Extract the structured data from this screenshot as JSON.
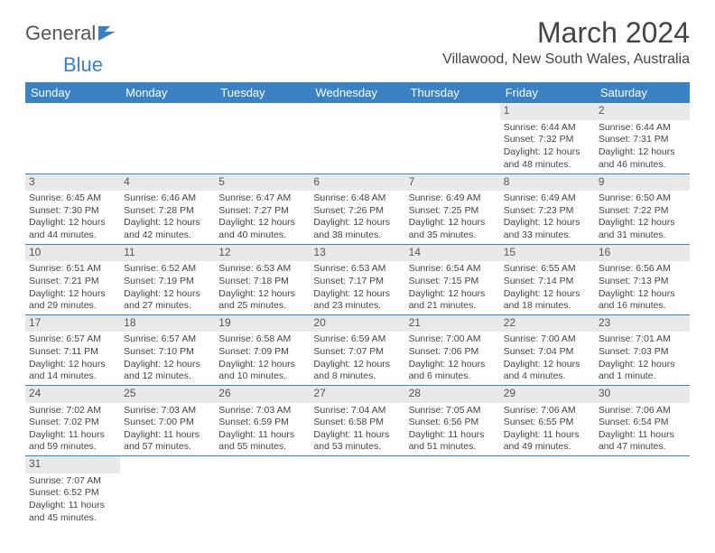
{
  "logo": {
    "text1": "General",
    "text2": "Blue"
  },
  "title": "March 2024",
  "location": "Villawood, New South Wales, Australia",
  "colors": {
    "header_bg": "#3b82c4",
    "header_fg": "#ffffff",
    "daynum_bg": "#e9e9e9",
    "row_border": "#3b82c4",
    "logo_blue": "#3b7fc4"
  },
  "columns": [
    "Sunday",
    "Monday",
    "Tuesday",
    "Wednesday",
    "Thursday",
    "Friday",
    "Saturday"
  ],
  "weeks": [
    [
      null,
      null,
      null,
      null,
      null,
      {
        "n": "1",
        "sr": "Sunrise: 6:44 AM",
        "ss": "Sunset: 7:32 PM",
        "dl": "Daylight: 12 hours and 48 minutes."
      },
      {
        "n": "2",
        "sr": "Sunrise: 6:44 AM",
        "ss": "Sunset: 7:31 PM",
        "dl": "Daylight: 12 hours and 46 minutes."
      }
    ],
    [
      {
        "n": "3",
        "sr": "Sunrise: 6:45 AM",
        "ss": "Sunset: 7:30 PM",
        "dl": "Daylight: 12 hours and 44 minutes."
      },
      {
        "n": "4",
        "sr": "Sunrise: 6:46 AM",
        "ss": "Sunset: 7:28 PM",
        "dl": "Daylight: 12 hours and 42 minutes."
      },
      {
        "n": "5",
        "sr": "Sunrise: 6:47 AM",
        "ss": "Sunset: 7:27 PM",
        "dl": "Daylight: 12 hours and 40 minutes."
      },
      {
        "n": "6",
        "sr": "Sunrise: 6:48 AM",
        "ss": "Sunset: 7:26 PM",
        "dl": "Daylight: 12 hours and 38 minutes."
      },
      {
        "n": "7",
        "sr": "Sunrise: 6:49 AM",
        "ss": "Sunset: 7:25 PM",
        "dl": "Daylight: 12 hours and 35 minutes."
      },
      {
        "n": "8",
        "sr": "Sunrise: 6:49 AM",
        "ss": "Sunset: 7:23 PM",
        "dl": "Daylight: 12 hours and 33 minutes."
      },
      {
        "n": "9",
        "sr": "Sunrise: 6:50 AM",
        "ss": "Sunset: 7:22 PM",
        "dl": "Daylight: 12 hours and 31 minutes."
      }
    ],
    [
      {
        "n": "10",
        "sr": "Sunrise: 6:51 AM",
        "ss": "Sunset: 7:21 PM",
        "dl": "Daylight: 12 hours and 29 minutes."
      },
      {
        "n": "11",
        "sr": "Sunrise: 6:52 AM",
        "ss": "Sunset: 7:19 PM",
        "dl": "Daylight: 12 hours and 27 minutes."
      },
      {
        "n": "12",
        "sr": "Sunrise: 6:53 AM",
        "ss": "Sunset: 7:18 PM",
        "dl": "Daylight: 12 hours and 25 minutes."
      },
      {
        "n": "13",
        "sr": "Sunrise: 6:53 AM",
        "ss": "Sunset: 7:17 PM",
        "dl": "Daylight: 12 hours and 23 minutes."
      },
      {
        "n": "14",
        "sr": "Sunrise: 6:54 AM",
        "ss": "Sunset: 7:15 PM",
        "dl": "Daylight: 12 hours and 21 minutes."
      },
      {
        "n": "15",
        "sr": "Sunrise: 6:55 AM",
        "ss": "Sunset: 7:14 PM",
        "dl": "Daylight: 12 hours and 18 minutes."
      },
      {
        "n": "16",
        "sr": "Sunrise: 6:56 AM",
        "ss": "Sunset: 7:13 PM",
        "dl": "Daylight: 12 hours and 16 minutes."
      }
    ],
    [
      {
        "n": "17",
        "sr": "Sunrise: 6:57 AM",
        "ss": "Sunset: 7:11 PM",
        "dl": "Daylight: 12 hours and 14 minutes."
      },
      {
        "n": "18",
        "sr": "Sunrise: 6:57 AM",
        "ss": "Sunset: 7:10 PM",
        "dl": "Daylight: 12 hours and 12 minutes."
      },
      {
        "n": "19",
        "sr": "Sunrise: 6:58 AM",
        "ss": "Sunset: 7:09 PM",
        "dl": "Daylight: 12 hours and 10 minutes."
      },
      {
        "n": "20",
        "sr": "Sunrise: 6:59 AM",
        "ss": "Sunset: 7:07 PM",
        "dl": "Daylight: 12 hours and 8 minutes."
      },
      {
        "n": "21",
        "sr": "Sunrise: 7:00 AM",
        "ss": "Sunset: 7:06 PM",
        "dl": "Daylight: 12 hours and 6 minutes."
      },
      {
        "n": "22",
        "sr": "Sunrise: 7:00 AM",
        "ss": "Sunset: 7:04 PM",
        "dl": "Daylight: 12 hours and 4 minutes."
      },
      {
        "n": "23",
        "sr": "Sunrise: 7:01 AM",
        "ss": "Sunset: 7:03 PM",
        "dl": "Daylight: 12 hours and 1 minute."
      }
    ],
    [
      {
        "n": "24",
        "sr": "Sunrise: 7:02 AM",
        "ss": "Sunset: 7:02 PM",
        "dl": "Daylight: 11 hours and 59 minutes."
      },
      {
        "n": "25",
        "sr": "Sunrise: 7:03 AM",
        "ss": "Sunset: 7:00 PM",
        "dl": "Daylight: 11 hours and 57 minutes."
      },
      {
        "n": "26",
        "sr": "Sunrise: 7:03 AM",
        "ss": "Sunset: 6:59 PM",
        "dl": "Daylight: 11 hours and 55 minutes."
      },
      {
        "n": "27",
        "sr": "Sunrise: 7:04 AM",
        "ss": "Sunset: 6:58 PM",
        "dl": "Daylight: 11 hours and 53 minutes."
      },
      {
        "n": "28",
        "sr": "Sunrise: 7:05 AM",
        "ss": "Sunset: 6:56 PM",
        "dl": "Daylight: 11 hours and 51 minutes."
      },
      {
        "n": "29",
        "sr": "Sunrise: 7:06 AM",
        "ss": "Sunset: 6:55 PM",
        "dl": "Daylight: 11 hours and 49 minutes."
      },
      {
        "n": "30",
        "sr": "Sunrise: 7:06 AM",
        "ss": "Sunset: 6:54 PM",
        "dl": "Daylight: 11 hours and 47 minutes."
      }
    ],
    [
      {
        "n": "31",
        "sr": "Sunrise: 7:07 AM",
        "ss": "Sunset: 6:52 PM",
        "dl": "Daylight: 11 hours and 45 minutes."
      },
      null,
      null,
      null,
      null,
      null,
      null
    ]
  ]
}
